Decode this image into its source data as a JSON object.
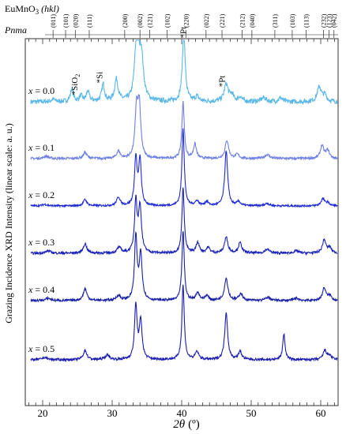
{
  "chart_data": {
    "type": "line",
    "header": {
      "compound_prefix": "EuMnO",
      "compound_sub": "3",
      "hkl_label": "(hkl)",
      "space_group": "Pnma"
    },
    "xlabel_main": "2θ",
    "xlabel_unit": "(º)",
    "ylabel": "Grazing Incidence XRD Intensity (linear scale: a. u.)",
    "xlim": [
      17.5,
      62.5
    ],
    "x_ticks": [
      20,
      30,
      40,
      50,
      60
    ],
    "x_tick_labels": [
      "20",
      "30",
      "40",
      "50",
      "60"
    ],
    "hkl_ticks": [
      {
        "pos": 21.5,
        "label": "(011)"
      },
      {
        "pos": 23.3,
        "label": "(101)"
      },
      {
        "pos": 24.7,
        "label": "(020)"
      },
      {
        "pos": 26.7,
        "label": "(111)"
      },
      {
        "pos": 31.8,
        "label": "(200)"
      },
      {
        "pos": 34.0,
        "label": "(002)"
      },
      {
        "pos": 35.4,
        "label": "(121)"
      },
      {
        "pos": 37.9,
        "label": "(102)"
      },
      {
        "pos": 40.6,
        "label": "(220)"
      },
      {
        "pos": 43.5,
        "label": "(022)"
      },
      {
        "pos": 45.8,
        "label": "(221)"
      },
      {
        "pos": 48.7,
        "label": "(212)"
      },
      {
        "pos": 50.1,
        "label": "(040)"
      },
      {
        "pos": 53.4,
        "label": "(311)"
      },
      {
        "pos": 55.9,
        "label": "(103)"
      },
      {
        "pos": 57.9,
        "label": "(113)"
      },
      {
        "pos": 60.4,
        "label": "(232)"
      },
      {
        "pos": 61.2,
        "label": "(123)"
      },
      {
        "pos": 61.9,
        "label": "(042)"
      }
    ],
    "series": [
      {
        "name": "x = 0.0",
        "color": "#5ab8e8",
        "offset": 385,
        "noise": 3,
        "peaks": [
          [
            21.5,
            3,
            0.3
          ],
          [
            24.2,
            16,
            0.25
          ],
          [
            25.5,
            7,
            0.25
          ],
          [
            26.5,
            13,
            0.25
          ],
          [
            28.7,
            22,
            0.25
          ],
          [
            30.6,
            28,
            0.3
          ],
          [
            33.4,
            42,
            0.3
          ],
          [
            33.7,
            48,
            0.3
          ],
          [
            34.2,
            55,
            0.35
          ],
          [
            40.3,
            85,
            0.25
          ],
          [
            42.2,
            6,
            0.3
          ],
          [
            46.4,
            22,
            0.35
          ],
          [
            47.2,
            8,
            0.3
          ],
          [
            48.4,
            6,
            0.3
          ],
          [
            51.8,
            5,
            0.4
          ],
          [
            54.2,
            5,
            0.3
          ],
          [
            59.8,
            19,
            0.35
          ],
          [
            60.6,
            8,
            0.3
          ]
        ]
      },
      {
        "name": "x = 0.1",
        "color": "#6f80e4",
        "offset": 313,
        "noise": 1.5,
        "peaks": [
          [
            20.5,
            3,
            0.4
          ],
          [
            26.1,
            8,
            0.3
          ],
          [
            30.9,
            9,
            0.3
          ],
          [
            33.5,
            60,
            0.25
          ],
          [
            33.9,
            63,
            0.25
          ],
          [
            40.2,
            72,
            0.2
          ],
          [
            41.9,
            18,
            0.25
          ],
          [
            46.5,
            23,
            0.3
          ],
          [
            48.0,
            5,
            0.3
          ],
          [
            52.3,
            5,
            0.4
          ],
          [
            60.2,
            16,
            0.3
          ],
          [
            61.0,
            10,
            0.3
          ]
        ]
      },
      {
        "name": "x = 0.2",
        "color": "#1e2ad4",
        "offset": 253,
        "noise": 1.2,
        "peaks": [
          [
            20.3,
            2,
            0.4
          ],
          [
            26.1,
            8,
            0.3
          ],
          [
            30.9,
            11,
            0.3
          ],
          [
            33.4,
            60,
            0.22
          ],
          [
            34.0,
            58,
            0.22
          ],
          [
            40.2,
            98,
            0.2
          ],
          [
            42.2,
            6,
            0.3
          ],
          [
            43.6,
            5,
            0.3
          ],
          [
            46.4,
            70,
            0.25
          ],
          [
            48.2,
            5,
            0.3
          ],
          [
            52.3,
            3,
            0.4
          ],
          [
            60.3,
            9,
            0.3
          ],
          [
            61.0,
            4,
            0.3
          ]
        ]
      },
      {
        "name": "x = 0.3",
        "color": "#1a22b8",
        "offset": 193,
        "noise": 1.5,
        "peaks": [
          [
            20.8,
            3,
            0.4
          ],
          [
            26.1,
            12,
            0.3
          ],
          [
            31.0,
            7,
            0.35
          ],
          [
            33.4,
            65,
            0.22
          ],
          [
            34.0,
            58,
            0.25
          ],
          [
            40.2,
            82,
            0.2
          ],
          [
            42.3,
            13,
            0.3
          ],
          [
            43.8,
            7,
            0.3
          ],
          [
            46.4,
            20,
            0.3
          ],
          [
            48.4,
            13,
            0.3
          ],
          [
            52.3,
            5,
            0.4
          ],
          [
            56.5,
            3,
            0.4
          ],
          [
            60.5,
            17,
            0.3
          ],
          [
            61.3,
            7,
            0.3
          ]
        ]
      },
      {
        "name": "x = 0.4",
        "color": "#1820a8",
        "offset": 133,
        "noise": 1.5,
        "peaks": [
          [
            20.8,
            3,
            0.4
          ],
          [
            26.1,
            15,
            0.3
          ],
          [
            30.9,
            6,
            0.35
          ],
          [
            33.4,
            80,
            0.22
          ],
          [
            34.1,
            58,
            0.25
          ],
          [
            40.2,
            88,
            0.2
          ],
          [
            42.3,
            10,
            0.3
          ],
          [
            43.6,
            6,
            0.3
          ],
          [
            46.4,
            28,
            0.3
          ],
          [
            48.5,
            9,
            0.3
          ],
          [
            52.4,
            4,
            0.4
          ],
          [
            56.5,
            3,
            0.4
          ],
          [
            60.5,
            16,
            0.3
          ],
          [
            61.3,
            6,
            0.3
          ]
        ]
      },
      {
        "name": "x = 0.5",
        "color": "#1a1cb0",
        "offset": 58,
        "noise": 1.5,
        "peaks": [
          [
            20.3,
            3,
            0.4
          ],
          [
            26.1,
            12,
            0.3
          ],
          [
            29.3,
            6,
            0.35
          ],
          [
            33.4,
            68,
            0.22
          ],
          [
            34.1,
            48,
            0.25
          ],
          [
            40.2,
            95,
            0.2
          ],
          [
            42.2,
            10,
            0.3
          ],
          [
            46.4,
            60,
            0.25
          ],
          [
            48.4,
            10,
            0.3
          ],
          [
            54.7,
            33,
            0.2
          ],
          [
            60.6,
            12,
            0.3
          ],
          [
            61.3,
            5,
            0.3
          ]
        ]
      }
    ],
    "peak_annotations": [
      {
        "series": 0,
        "label": "SiO",
        "sub": "2",
        "x": 25.0,
        "rise": 40
      },
      {
        "series": 0,
        "label": "Si",
        "sub": "",
        "x": 28.6,
        "rise": 38
      },
      {
        "series": 0,
        "label": "Pt",
        "sub": "",
        "x": 40.6,
        "rise": 80
      },
      {
        "series": 0,
        "label": "Pt",
        "sub": "",
        "x": 46.2,
        "rise": 36
      }
    ],
    "grid": false
  }
}
